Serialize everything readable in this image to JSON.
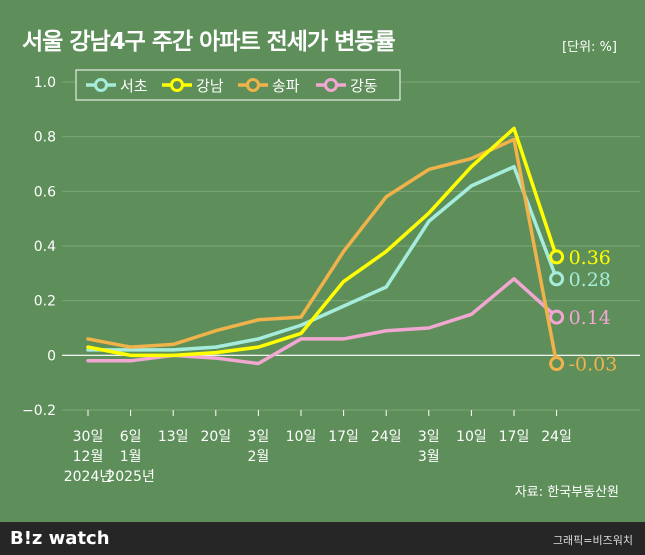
{
  "header": {
    "title": "서울 강남4구 주간 아파트 전세가 변동률",
    "unit": "[단위: %]"
  },
  "chart_data": {
    "type": "line",
    "categories": [
      [
        "30일",
        "12월",
        "2024년"
      ],
      [
        "6일",
        "1월",
        "2025년"
      ],
      [
        "13일"
      ],
      [
        "20일"
      ],
      [
        "3일",
        "2월"
      ],
      [
        "10일"
      ],
      [
        "17일"
      ],
      [
        "24일"
      ],
      [
        "3일",
        "3월"
      ],
      [
        "10일"
      ],
      [
        "17일"
      ],
      [
        "24일"
      ]
    ],
    "ylim": [
      -0.2,
      1.0
    ],
    "yticks": [
      "1.0",
      "0.8",
      "0.6",
      "0.4",
      "0.2",
      "0",
      "−0.2"
    ],
    "grid": true,
    "legend_position": "top-left",
    "series": [
      {
        "name": "서초",
        "color": "#a6ecdc",
        "values": [
          0.02,
          0.02,
          0.02,
          0.03,
          0.06,
          0.11,
          0.18,
          0.25,
          0.49,
          0.62,
          0.69,
          0.28
        ],
        "end_label": "0.28"
      },
      {
        "name": "강남",
        "color": "#ffff00",
        "values": [
          0.03,
          0.0,
          0.0,
          0.01,
          0.03,
          0.08,
          0.27,
          0.38,
          0.52,
          0.69,
          0.83,
          0.36
        ],
        "end_label": "0.36"
      },
      {
        "name": "송파",
        "color": "#f0b24a",
        "values": [
          0.06,
          0.03,
          0.04,
          0.09,
          0.13,
          0.14,
          0.38,
          0.58,
          0.68,
          0.72,
          0.79,
          -0.03
        ],
        "end_label": "-0.03"
      },
      {
        "name": "강동",
        "color": "#f2a6d2",
        "values": [
          -0.02,
          -0.02,
          0.0,
          -0.01,
          -0.03,
          0.06,
          0.06,
          0.09,
          0.1,
          0.15,
          0.28,
          0.14
        ],
        "end_label": "0.14"
      }
    ]
  },
  "footer": {
    "source": "자료: 한국부동산원",
    "brand": "B!z watch",
    "credit": "그래픽=비즈워치"
  }
}
